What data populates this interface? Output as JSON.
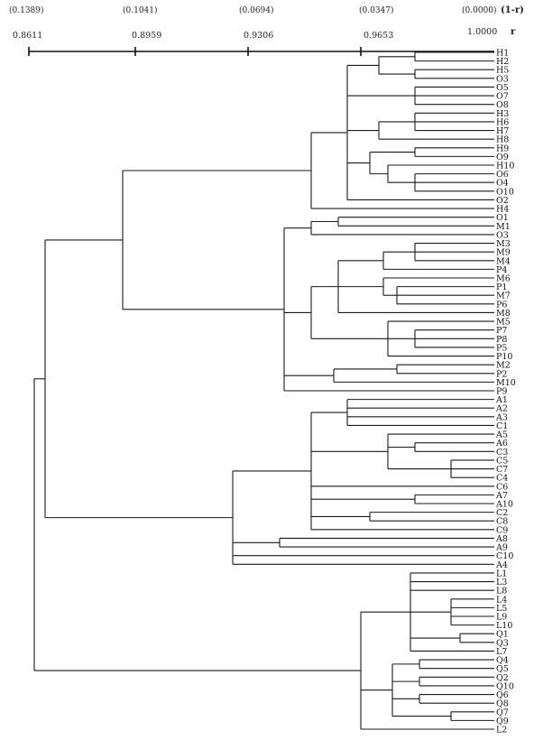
{
  "axis": {
    "top_ticks": [
      "(0.1389)",
      "(0.1041)",
      "(0.0694)",
      "(0.0347)",
      "(0.0000)"
    ],
    "bottom_ticks": [
      "0.8611",
      "0.8959",
      "0.9306",
      "0.9653",
      "1.0000"
    ],
    "top_label": "(1-r)",
    "bottom_label": "r"
  },
  "leaves": [
    "H1",
    "H2",
    "H5",
    "O3",
    "O5",
    "O7",
    "O8",
    "H3",
    "H6",
    "H7",
    "H8",
    "H9",
    "O9",
    "H10",
    "O6",
    "O4",
    "O10",
    "O2",
    "H4",
    "O1",
    "M1",
    "O3",
    "M3",
    "M9",
    "M4",
    "P4",
    "M6",
    "P1",
    "M7",
    "P6",
    "M8",
    "M5",
    "P7",
    "P8",
    "P5",
    "P10",
    "M2",
    "P2",
    "M10",
    "P9",
    "A1",
    "A2",
    "A3",
    "C1",
    "A5",
    "A6",
    "C3",
    "C5",
    "C7",
    "C4",
    "C6",
    "A7",
    "A10",
    "C2",
    "C8",
    "C9",
    "A8",
    "A9",
    "C10",
    "A4",
    "L1",
    "L3",
    "L8",
    "L4",
    "L5",
    "L9",
    "L10",
    "Q1",
    "Q3",
    "L7",
    "Q4",
    "Q5",
    "Q2",
    "Q10",
    "Q6",
    "Q8",
    "Q7",
    "Q9",
    "L2"
  ],
  "tree": [
    "B",
    50,
    [
      "B",
      136,
      [
        "B",
        345,
        [
          "B",
          385,
          [
            "B",
            420,
            [
              "B",
              460,
              [
                "L",
                0
              ],
              [
                "L",
                1
              ]
            ],
            [
              "B",
              460,
              [
                "L",
                2
              ],
              [
                "L",
                3
              ]
            ]
          ],
          [
            "B",
            460,
            [
              "L",
              4
            ],
            [
              "L",
              5
            ],
            [
              "L",
              6
            ]
          ],
          [
            "B",
            420,
            [
              "B",
              460,
              [
                "L",
                7
              ],
              [
                "L",
                8
              ],
              [
                "L",
                9
              ]
            ],
            [
              "L",
              10
            ]
          ],
          [
            "B",
            410,
            [
              "B",
              460,
              [
                "L",
                11
              ],
              [
                "L",
                12
              ]
            ],
            [
              "B",
              430,
              [
                "L",
                13
              ],
              [
                "B",
                460,
                [
                  "L",
                  14
                ],
                [
                  "L",
                  15
                ],
                [
                  "L",
                  16
                ]
              ]
            ]
          ],
          [
            "L",
            17
          ]
        ],
        [
          "L",
          18
        ]
      ],
      [
        "B",
        315,
        [
          "B",
          345,
          [
            "B",
            375,
            [
              "L",
              19
            ],
            [
              "L",
              20
            ]
          ],
          [
            "L",
            21
          ]
        ],
        [
          "B",
          345,
          [
            "B",
            375,
            [
              "B",
              425,
              [
                "B",
                460,
                [
                  "L",
                  22
                ],
                [
                  "L",
                  23
                ],
                [
                  "L",
                  24
                ]
              ],
              [
                "L",
                25
              ]
            ],
            [
              "B",
              425,
              [
                "L",
                26
              ],
              [
                "B",
                440,
                [
                  "L",
                  27
                ],
                [
                  "L",
                  28
                ],
                [
                  "L",
                  29
                ]
              ]
            ],
            [
              "L",
              30
            ]
          ],
          [
            "B",
            430,
            [
              "L",
              31
            ],
            [
              "B",
              460,
              [
                "L",
                32
              ],
              [
                "L",
                33
              ],
              [
                "L",
                34
              ]
            ],
            [
              "L",
              35
            ]
          ]
        ],
        [
          "B",
          370,
          [
            "B",
            440,
            [
              "L",
              36
            ],
            [
              "L",
              37
            ]
          ],
          [
            "L",
            38
          ]
        ],
        [
          "L",
          39
        ]
      ]
    ],
    [
      "B",
      258,
      [
        "B",
        345,
        [
          "B",
          385,
          [
            "L",
            40
          ],
          [
            "L",
            41
          ],
          [
            "L",
            42
          ],
          [
            "L",
            43
          ]
        ],
        [
          "B",
          430,
          [
            "L",
            44
          ],
          [
            "B",
            460,
            [
              "L",
              45
            ],
            [
              "L",
              46
            ]
          ],
          [
            "B",
            500,
            [
              "L",
              47
            ],
            [
              "L",
              48
            ],
            [
              "L",
              49
            ]
          ]
        ],
        [
          "L",
          50
        ],
        [
          "B",
          460,
          [
            "L",
            51
          ],
          [
            "L",
            52
          ]
        ],
        [
          "B",
          410,
          [
            "L",
            53
          ],
          [
            "L",
            54
          ]
        ],
        [
          "L",
          55
        ]
      ],
      [
        "B",
        310,
        [
          "L",
          56
        ],
        [
          "L",
          57
        ]
      ],
      [
        "L",
        58
      ],
      [
        "L",
        59
      ]
    ]
  ],
  "tree_root_partner": [
    "B",
    400,
    [
      "B",
      455,
      [
        "L",
        60
      ],
      [
        "L",
        61
      ],
      [
        "L",
        62
      ],
      [
        "B",
        500,
        [
          "L",
          63
        ],
        [
          "L",
          64
        ],
        [
          "L",
          65
        ],
        [
          "L",
          66
        ]
      ],
      [
        "B",
        510,
        [
          "L",
          67
        ],
        [
          "L",
          68
        ]
      ],
      [
        "L",
        69
      ]
    ],
    [
      "B",
      435,
      [
        "B",
        465,
        [
          "L",
          70
        ],
        [
          "L",
          71
        ]
      ],
      [
        "B",
        465,
        [
          "L",
          72
        ],
        [
          "L",
          73
        ]
      ],
      [
        "B",
        465,
        [
          "L",
          74
        ],
        [
          "L",
          75
        ]
      ],
      [
        "B",
        500,
        [
          "L",
          76
        ],
        [
          "L",
          77
        ]
      ]
    ],
    [
      "L",
      78
    ]
  ]
}
